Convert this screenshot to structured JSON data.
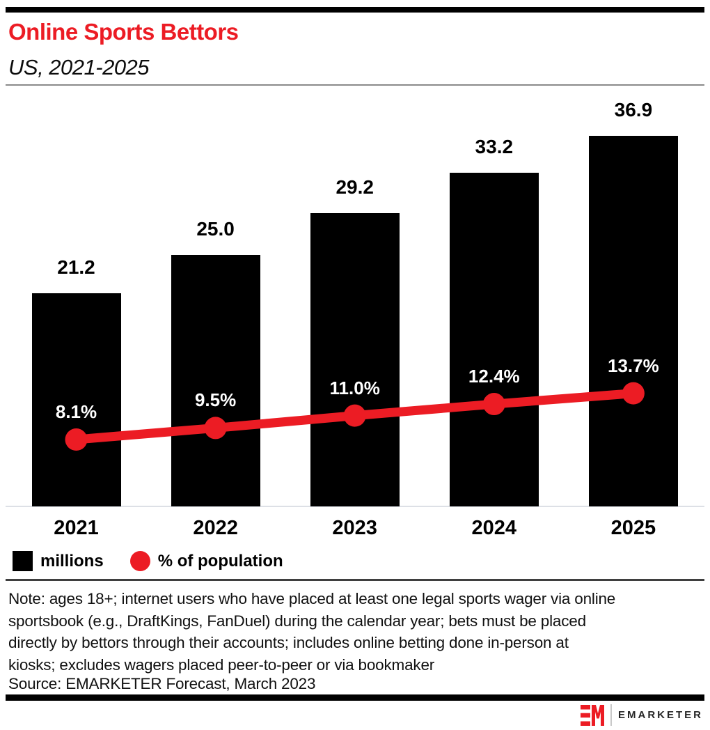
{
  "header": {
    "title": "Online Sports Bettors",
    "subtitle": "US, 2021-2025"
  },
  "chart_data": {
    "type": "bar",
    "subtype": "bar-with-line-overlay",
    "categories": [
      "2021",
      "2022",
      "2023",
      "2024",
      "2025"
    ],
    "series": [
      {
        "name": "millions",
        "type": "bar",
        "color": "#000000",
        "values": [
          21.2,
          25.0,
          29.2,
          33.2,
          36.9
        ],
        "labels": [
          "21.2",
          "25.0",
          "29.2",
          "33.2",
          "36.9"
        ]
      },
      {
        "name": "% of population",
        "type": "line",
        "color": "#ec1c24",
        "values": [
          8.1,
          9.5,
          11.0,
          12.4,
          13.7
        ],
        "labels": [
          "8.1%",
          "9.5%",
          "11.0%",
          "12.4%",
          "13.7%"
        ]
      }
    ],
    "title": "Online Sports Bettors",
    "subtitle": "US, 2021-2025",
    "xlabel": "",
    "ylabel": "",
    "grid": false,
    "axis_ticks_shown": false,
    "legend_position": "bottom-left"
  },
  "legend": {
    "items": [
      {
        "label": "millions",
        "swatch": "square",
        "color": "#000000"
      },
      {
        "label": "% of population",
        "swatch": "circle",
        "color": "#ec1c24"
      }
    ]
  },
  "note_lines": [
    "Note: ages 18+; internet users who have placed at least one legal sports wager via online",
    "sportsbook (e.g., DraftKings, FanDuel) during the calendar year; bets must be placed",
    "directly by bettors through their accounts; includes online betting done in-person at",
    "kiosks; excludes wagers placed peer-to-peer or via bookmaker"
  ],
  "source": "Source: EMARKETER Forecast, March 2023",
  "footer": {
    "brand": "EMARKETER",
    "logo": "em-monogram-icon"
  },
  "colors": {
    "accent_red": "#ec1c24",
    "bar_black": "#000000",
    "rule_dark": "#3f3f3f",
    "rule_gray": "#8a8a8a",
    "axis_gray": "#dde0e6"
  }
}
